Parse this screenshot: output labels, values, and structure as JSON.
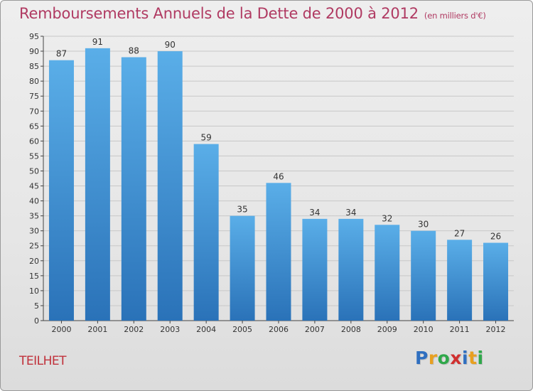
{
  "title": "Remboursements Annuels de la Dette de 2000 à 2012",
  "subtitle": "(en milliers d'€)",
  "commune": "TEILHET",
  "logo": {
    "letters": [
      "P",
      "r",
      "o",
      "x",
      "i",
      "t",
      "i"
    ],
    "colors": [
      "#2f6fc0",
      "#e8a020",
      "#2fa84a",
      "#d03030",
      "#2f6fc0",
      "#e8a020",
      "#2fa84a"
    ]
  },
  "colors": {
    "bar_top": "#5aaee8",
    "bar_bottom": "#2a72b8",
    "grid": "#c8c8c8",
    "axis": "#444444",
    "title": "#b03a62"
  },
  "chart_data": {
    "type": "bar",
    "categories": [
      "2000",
      "2001",
      "2002",
      "2003",
      "2004",
      "2005",
      "2006",
      "2007",
      "2008",
      "2009",
      "2010",
      "2011",
      "2012"
    ],
    "values": [
      87,
      91,
      88,
      90,
      59,
      35,
      46,
      34,
      34,
      32,
      30,
      27,
      26
    ],
    "ylim": [
      0,
      95
    ],
    "yticks": [
      0,
      5,
      10,
      15,
      20,
      25,
      30,
      35,
      40,
      45,
      50,
      55,
      60,
      65,
      70,
      75,
      80,
      85,
      90,
      95
    ],
    "grid": true,
    "xlabel": "",
    "ylabel": ""
  }
}
